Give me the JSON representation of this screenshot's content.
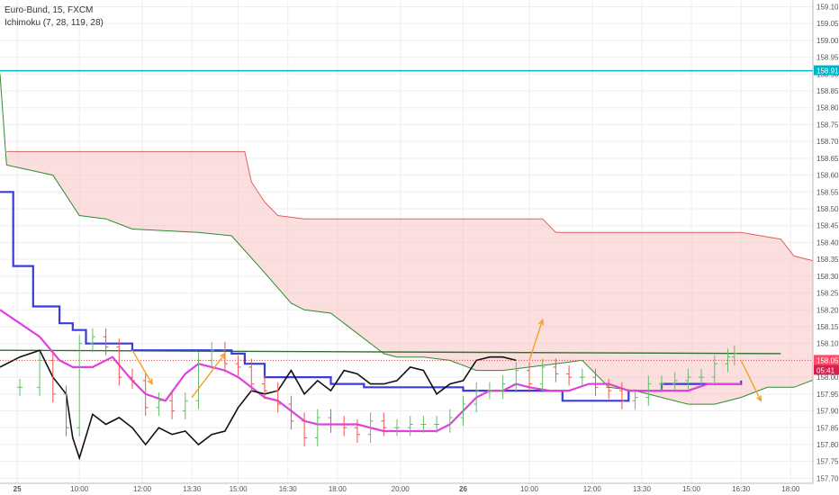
{
  "header": {
    "symbol": "Euro-Bund, 15, FXCM",
    "indicator": "Ichimoku (7, 28, 119, 28)"
  },
  "colors": {
    "cloud_fill": "#f8c4c4",
    "span_a": "#2e8b2e",
    "span_b": "#e06060",
    "base_line": "#3b3bdc",
    "conversion_line": "#e040e0",
    "lagging_line": "#101010",
    "horizontal_line": "#2e6e2e",
    "alert_line": "#00b4c8",
    "arrow": "#f5a020",
    "price_dotted": "#e05050",
    "badge_last": "#ff4a68",
    "badge_countdown": "#d62050",
    "badge_alert": "#00b4c8",
    "bull_candle": "#66bb6a",
    "bear_candle": "#ef5350"
  },
  "chart_data": {
    "type": "line",
    "title": "Euro-Bund, 15, FXCM",
    "indicator": "Ichimoku (7, 28, 119, 28)",
    "x_ticks": [
      "25",
      "10:00",
      "12:00",
      "13:30",
      "15:00",
      "16:30",
      "18:00",
      "20:00",
      "26",
      "10:00",
      "12:00",
      "13:30",
      "15:00",
      "16:30",
      "18:00"
    ],
    "y_ticks": [
      "159.10",
      "159.05",
      "159.00",
      "158.95",
      "158.90",
      "158.85",
      "158.80",
      "158.75",
      "158.70",
      "158.65",
      "158.60",
      "158.55",
      "158.50",
      "158.45",
      "158.40",
      "158.35",
      "158.30",
      "158.25",
      "158.20",
      "158.15",
      "158.10",
      "158.05",
      "158.00",
      "157.95",
      "157.90",
      "157.85",
      "157.80",
      "157.75",
      "157.70"
    ],
    "ylim": [
      157.685,
      159.12
    ],
    "grid": true,
    "alert_level": 158.91,
    "alert_label": "158.91",
    "last_price": 158.05,
    "last_price_label": "158.05",
    "countdown_label": "05:41",
    "horizontal_line": {
      "from": [
        0,
        158.08
      ],
      "to": [
        118,
        158.07
      ]
    },
    "series": [
      {
        "name": "Span A",
        "x": [
          0,
          1,
          8,
          12,
          16,
          20,
          30,
          35,
          40,
          44,
          46,
          50,
          58,
          60,
          64,
          68,
          72,
          76,
          80,
          84,
          88,
          92,
          96,
          100,
          104,
          108,
          112,
          116,
          120,
          124,
          128
        ],
        "values": [
          158.9,
          158.63,
          158.6,
          158.48,
          158.47,
          158.44,
          158.43,
          158.42,
          158.31,
          158.22,
          158.2,
          158.19,
          158.07,
          158.06,
          158.06,
          158.05,
          158.02,
          158.02,
          158.03,
          158.04,
          158.05,
          157.97,
          157.96,
          157.94,
          157.92,
          157.92,
          157.94,
          157.97,
          157.97,
          158.0,
          157.99
        ]
      },
      {
        "name": "Span B",
        "x": [
          1,
          37,
          38,
          40,
          42,
          46,
          82,
          84,
          112,
          118,
          120,
          124,
          128
        ],
        "values": [
          158.67,
          158.67,
          158.58,
          158.52,
          158.48,
          158.47,
          158.47,
          158.43,
          158.43,
          158.41,
          158.36,
          158.34,
          158.34
        ]
      },
      {
        "name": "Base line",
        "x": [
          0,
          2,
          5,
          9,
          11,
          13,
          20,
          35,
          37,
          40,
          45,
          50,
          55,
          70,
          80,
          85,
          90,
          95,
          100,
          112
        ],
        "values": [
          158.55,
          158.33,
          158.21,
          158.16,
          158.14,
          158.1,
          158.08,
          158.07,
          158.04,
          158.0,
          158.0,
          157.98,
          157.97,
          157.96,
          157.96,
          157.93,
          157.93,
          157.96,
          157.98,
          157.99
        ]
      },
      {
        "name": "Conversion line",
        "x": [
          0,
          3,
          6,
          9,
          11,
          14,
          17,
          20,
          22,
          25,
          28,
          30,
          32,
          34,
          36,
          38,
          40,
          42,
          44,
          46,
          48,
          50,
          52,
          54,
          56,
          58,
          60,
          62,
          64,
          66,
          68,
          70,
          72,
          74,
          76,
          78,
          80,
          83,
          86,
          89,
          92,
          95,
          98,
          101,
          104,
          107,
          110,
          112
        ],
        "values": [
          158.2,
          158.16,
          158.12,
          158.05,
          158.03,
          158.03,
          158.06,
          157.99,
          157.95,
          157.93,
          158.01,
          158.04,
          158.03,
          158.02,
          158.0,
          157.97,
          157.94,
          157.93,
          157.9,
          157.87,
          157.86,
          157.86,
          157.86,
          157.86,
          157.85,
          157.84,
          157.84,
          157.84,
          157.84,
          157.84,
          157.86,
          157.9,
          157.94,
          157.96,
          157.96,
          157.98,
          157.97,
          157.96,
          157.96,
          157.98,
          157.98,
          157.96,
          157.96,
          157.96,
          157.96,
          157.98,
          157.98,
          157.98
        ]
      },
      {
        "name": "Lagging span",
        "x": [
          0,
          3,
          6,
          8,
          10,
          11,
          12,
          14,
          16,
          18,
          20,
          22,
          24,
          26,
          28,
          30,
          32,
          34,
          36,
          38,
          40,
          42,
          44,
          46,
          48,
          50,
          52,
          54,
          56,
          58,
          60,
          62,
          64,
          66,
          68,
          70,
          72,
          74,
          76,
          78
        ],
        "values": [
          158.03,
          158.06,
          158.08,
          158.0,
          157.95,
          157.82,
          157.76,
          157.89,
          157.86,
          157.88,
          157.85,
          157.8,
          157.85,
          157.83,
          157.84,
          157.8,
          157.83,
          157.84,
          157.91,
          157.96,
          157.95,
          157.96,
          158.02,
          157.95,
          157.99,
          157.96,
          158.02,
          158.01,
          157.98,
          157.98,
          157.99,
          158.03,
          158.02,
          157.95,
          157.98,
          157.99,
          158.05,
          158.06,
          158.06,
          158.05
        ]
      },
      {
        "name": "Price bars",
        "x": [
          3,
          6,
          8,
          10,
          12,
          14,
          16,
          18,
          20,
          22,
          24,
          26,
          28,
          30,
          32,
          34,
          36,
          38,
          40,
          42,
          44,
          46,
          48,
          50,
          52,
          54,
          56,
          58,
          60,
          62,
          64,
          66,
          68,
          70,
          72,
          74,
          76,
          78,
          80,
          82,
          84,
          86,
          88,
          90,
          92,
          94,
          96,
          98,
          100,
          102,
          104,
          106,
          108,
          110,
          111
        ],
        "values": [
          157.97,
          158.05,
          157.95,
          157.85,
          158.1,
          158.12,
          158.09,
          158.0,
          157.99,
          157.91,
          157.93,
          157.9,
          157.93,
          158.05,
          158.08,
          158.04,
          158.03,
          157.98,
          157.96,
          157.92,
          157.87,
          157.82,
          157.88,
          157.86,
          157.85,
          157.83,
          157.87,
          157.85,
          157.85,
          157.86,
          157.86,
          157.86,
          157.88,
          157.92,
          157.96,
          157.96,
          157.98,
          158.02,
          157.98,
          158.03,
          158.01,
          158.0,
          158.0,
          157.97,
          157.96,
          157.93,
          157.94,
          157.98,
          157.98,
          157.99,
          158.0,
          158.0,
          158.04,
          158.06,
          158.07
        ]
      }
    ],
    "arrows": [
      {
        "from": [
          20,
          158.08
        ],
        "to": [
          23,
          157.98
        ]
      },
      {
        "from": [
          29,
          157.94
        ],
        "to": [
          34,
          158.07
        ]
      },
      {
        "from": [
          80,
          158.05
        ],
        "to": [
          82,
          158.17
        ]
      },
      {
        "from": [
          112,
          158.05
        ],
        "to": [
          115,
          157.93
        ]
      }
    ]
  }
}
